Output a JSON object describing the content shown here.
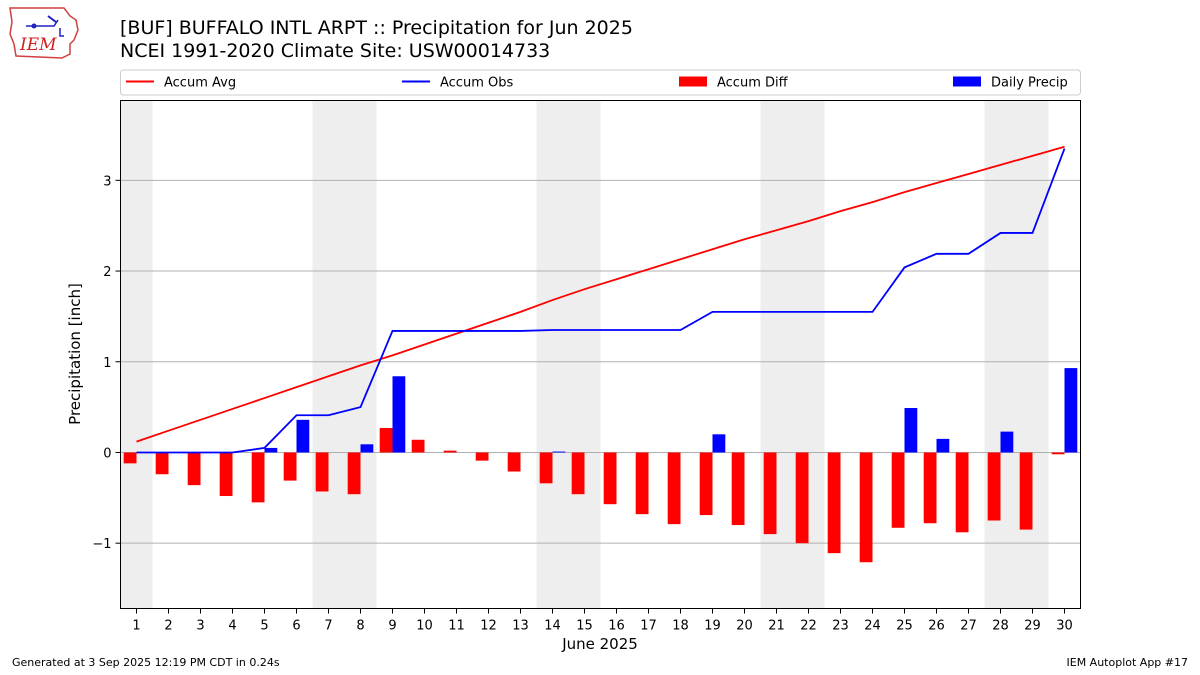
{
  "header": {
    "title_line1": "[BUF] BUFFALO INTL ARPT :: Precipitation for Jun 2025",
    "title_line2": "NCEI 1991-2020 Climate Site: USW00014733",
    "logo_text": "IEM"
  },
  "footer": {
    "left": "Generated at 3 Sep 2025 12:19 PM CDT in 0.24s",
    "right": "IEM Autoplot App #17"
  },
  "chart_data": {
    "type": "bar",
    "xlabel": "June 2025",
    "ylabel": "Precipitation [inch]",
    "ylim": [
      -1.72,
      3.88
    ],
    "xlim": [
      0.5,
      30.5
    ],
    "yticks": [
      -1,
      0,
      1,
      2,
      3
    ],
    "ytick_labels": [
      "−1",
      "0",
      "1",
      "2",
      "3"
    ],
    "categories": [
      "1",
      "2",
      "3",
      "4",
      "5",
      "6",
      "7",
      "8",
      "9",
      "10",
      "11",
      "12",
      "13",
      "14",
      "15",
      "16",
      "17",
      "18",
      "19",
      "20",
      "21",
      "22",
      "23",
      "24",
      "25",
      "26",
      "27",
      "28",
      "29",
      "30"
    ],
    "grid": "horizontal",
    "weekend_bands": [
      [
        0.5,
        1.5
      ],
      [
        6.5,
        8.5
      ],
      [
        13.5,
        15.5
      ],
      [
        20.5,
        22.5
      ],
      [
        27.5,
        29.5
      ]
    ],
    "legend_position": "top",
    "legend": [
      {
        "label": "Accum Avg",
        "kind": "line",
        "color": "#ff0000"
      },
      {
        "label": "Accum Obs",
        "kind": "line",
        "color": "#0000ff"
      },
      {
        "label": "Accum Diff",
        "kind": "bar",
        "color": "#ff0000"
      },
      {
        "label": "Daily Precip",
        "kind": "bar",
        "color": "#0000ff"
      }
    ],
    "series": [
      {
        "name": "Accum Avg",
        "kind": "line",
        "color": "#ff0000",
        "values": [
          0.12,
          0.24,
          0.36,
          0.48,
          0.6,
          0.72,
          0.84,
          0.96,
          1.07,
          1.19,
          1.31,
          1.43,
          1.55,
          1.68,
          1.8,
          1.91,
          2.02,
          2.13,
          2.24,
          2.35,
          2.45,
          2.55,
          2.66,
          2.76,
          2.87,
          2.97,
          3.07,
          3.17,
          3.27,
          3.37
        ]
      },
      {
        "name": "Accum Obs",
        "kind": "line",
        "color": "#0000ff",
        "values": [
          0.0,
          0.0,
          0.0,
          0.0,
          0.05,
          0.41,
          0.41,
          0.5,
          1.34,
          1.34,
          1.34,
          1.34,
          1.34,
          1.35,
          1.35,
          1.35,
          1.35,
          1.35,
          1.55,
          1.55,
          1.55,
          1.55,
          1.55,
          1.55,
          2.04,
          2.19,
          2.19,
          2.42,
          2.42,
          3.35
        ]
      },
      {
        "name": "Accum Diff",
        "kind": "bar",
        "color": "#ff0000",
        "values": [
          -0.12,
          -0.24,
          -0.36,
          -0.48,
          -0.55,
          -0.31,
          -0.43,
          -0.46,
          0.27,
          0.14,
          0.02,
          -0.09,
          -0.21,
          -0.34,
          -0.46,
          -0.57,
          -0.68,
          -0.79,
          -0.69,
          -0.8,
          -0.9,
          -1.0,
          -1.11,
          -1.21,
          -0.83,
          -0.78,
          -0.88,
          -0.75,
          -0.85,
          -0.02
        ]
      },
      {
        "name": "Daily Precip",
        "kind": "bar",
        "color": "#0000ff",
        "values": [
          0.0,
          0.0,
          0.0,
          0.0,
          0.05,
          0.36,
          0.0,
          0.09,
          0.84,
          0.0,
          0.0,
          0.0,
          0.0,
          0.01,
          0.0,
          0.0,
          0.0,
          0.0,
          0.2,
          0.0,
          0.0,
          0.0,
          0.0,
          0.0,
          0.49,
          0.15,
          0.0,
          0.23,
          0.0,
          0.93
        ]
      }
    ]
  }
}
